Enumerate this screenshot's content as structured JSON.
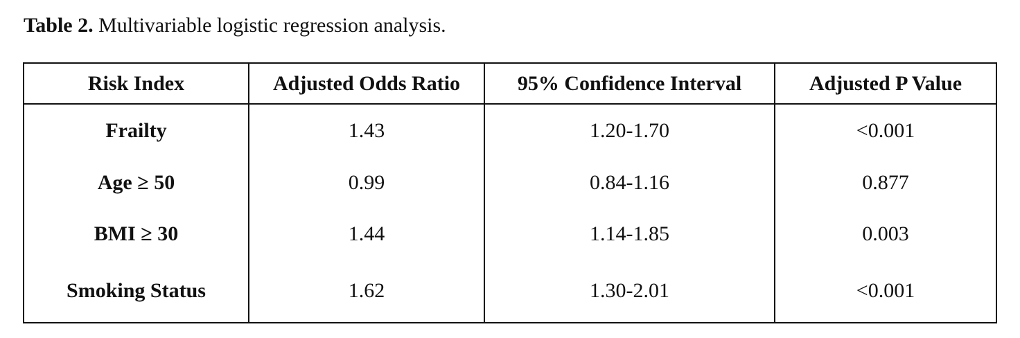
{
  "caption": {
    "label": "Table 2.",
    "text": "Multivariable logistic regression analysis."
  },
  "table": {
    "headers": [
      "Risk Index",
      "Adjusted Odds Ratio",
      "95% Confidence Interval",
      "Adjusted P Value"
    ],
    "rows": [
      {
        "risk_index": "Frailty",
        "odds_ratio": "1.43",
        "confidence_interval": "1.20-1.70",
        "p_value": "<0.001"
      },
      {
        "risk_index": "Age ≥ 50",
        "odds_ratio": "0.99",
        "confidence_interval": "0.84-1.16",
        "p_value": "0.877"
      },
      {
        "risk_index": "BMI ≥ 30",
        "odds_ratio": "1.44",
        "confidence_interval": "1.14-1.85",
        "p_value": "0.003"
      },
      {
        "risk_index": "Smoking Status",
        "odds_ratio": "1.62",
        "confidence_interval": "1.30-2.01",
        "p_value": "<0.001"
      }
    ]
  }
}
